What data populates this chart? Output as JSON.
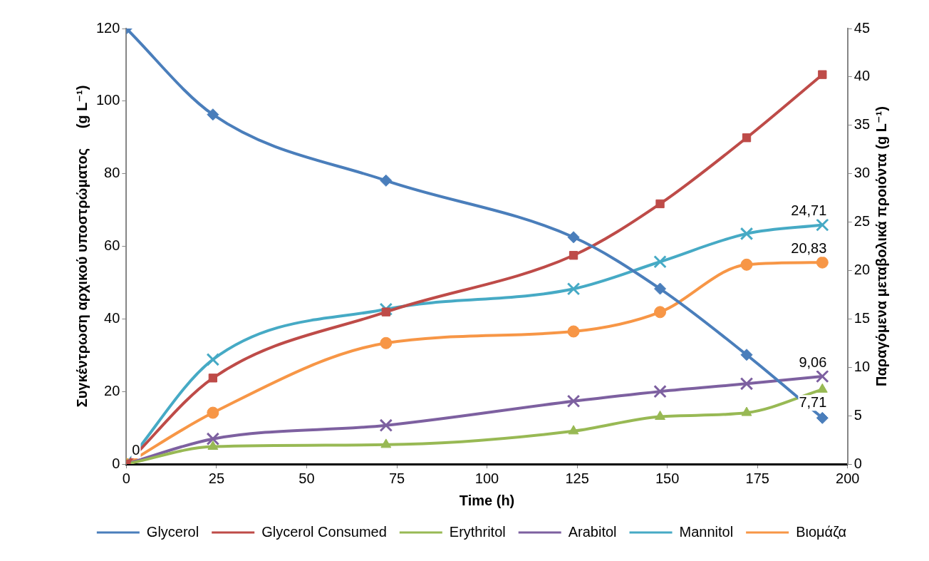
{
  "chart_data": {
    "type": "line",
    "xlabel": "Time (h)",
    "ylabel": "Συγκέντρωση αρχικού υποστρώματος     (g L⁻¹)",
    "y2label": "Παραγόμενα μεταβολικά προιόντα (g L⁻¹)",
    "x": [
      0,
      24,
      72,
      124,
      148,
      172,
      193
    ],
    "xlim": [
      0,
      200
    ],
    "xticks": [
      0,
      25,
      50,
      75,
      100,
      125,
      150,
      175,
      200
    ],
    "ylim": [
      0,
      120
    ],
    "yticks": [
      0,
      20,
      40,
      60,
      80,
      100,
      120
    ],
    "y2lim": [
      0,
      45
    ],
    "y2ticks": [
      0,
      5,
      10,
      15,
      20,
      25,
      30,
      35,
      40,
      45
    ],
    "grid": false,
    "legend": "bottom",
    "series": [
      {
        "name": "Glycerol",
        "color": "#4a7ebb",
        "marker": "diamond",
        "values": [
          120,
          96.3,
          78.1,
          62.5,
          48.3,
          30.1,
          12.7
        ]
      },
      {
        "name": "Glycerol Consumed",
        "color": "#be4b48",
        "marker": "square",
        "values": [
          0,
          23.7,
          41.9,
          57.5,
          71.7,
          89.9,
          107.3
        ]
      },
      {
        "name": "Erythritol",
        "color": "#98b954",
        "marker": "triangle",
        "axis": "y2",
        "values": [
          0,
          1.8,
          2.0,
          3.4,
          4.9,
          5.3,
          7.71
        ],
        "value_labels": [
          "0",
          null,
          null,
          null,
          null,
          null,
          "7,71"
        ]
      },
      {
        "name": "Arabitol",
        "color": "#7d60a0",
        "marker": "cross",
        "axis": "y2",
        "values": [
          0,
          2.6,
          4.0,
          6.5,
          7.5,
          8.3,
          9.06
        ],
        "value_labels": [
          null,
          null,
          null,
          null,
          null,
          null,
          "9,06"
        ]
      },
      {
        "name": "Mannitol",
        "color": "#46aac5",
        "marker": "cross",
        "axis": "y2",
        "values": [
          0,
          10.8,
          16.0,
          18.1,
          20.9,
          23.8,
          24.71
        ],
        "value_labels": [
          null,
          null,
          null,
          null,
          null,
          null,
          "24,71"
        ]
      },
      {
        "name": "Βιομάζα",
        "color": "#f79646",
        "marker": "circle",
        "axis": "y2",
        "values": [
          0,
          5.3,
          12.5,
          13.7,
          15.7,
          20.6,
          20.83
        ],
        "value_labels": [
          null,
          null,
          null,
          null,
          null,
          null,
          "20,83"
        ]
      }
    ]
  }
}
